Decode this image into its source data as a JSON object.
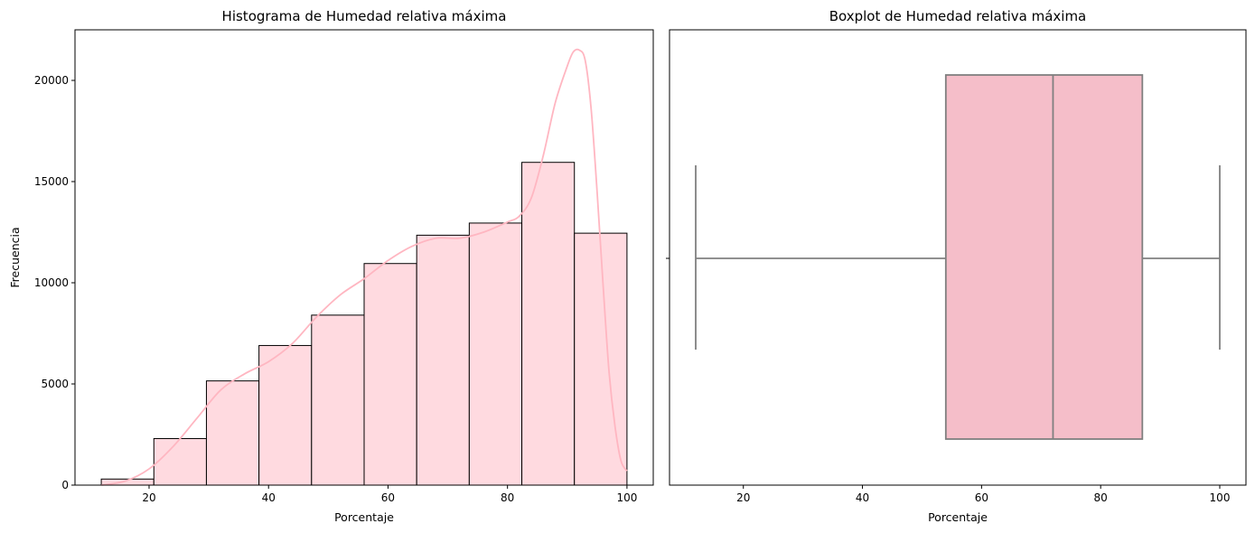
{
  "colors": {
    "bar_fill": "#ffdae0",
    "bar_edge": "#000000",
    "kde_line": "#ffb6c1",
    "box_fill": "#f5bec9",
    "box_edge": "#808080"
  },
  "chart_data": [
    {
      "type": "bar",
      "title": "Histograma de Humedad relativa máxima",
      "xlabel": "Porcentaje",
      "ylabel": "Frecuencia",
      "xlim": [
        7.6,
        104.4
      ],
      "ylim": [
        0,
        22500
      ],
      "xticks": [
        20,
        40,
        60,
        80,
        100
      ],
      "yticks": [
        0,
        5000,
        10000,
        15000,
        20000
      ],
      "bin_edges": [
        12,
        20.8,
        29.6,
        38.4,
        47.2,
        56,
        64.8,
        73.6,
        82.4,
        91.2,
        100
      ],
      "values": [
        300,
        2300,
        5150,
        6900,
        8400,
        10950,
        12350,
        12950,
        15950,
        12450
      ],
      "kde": {
        "x": [
          12,
          16,
          20,
          24,
          28,
          32,
          36,
          40,
          44,
          48,
          52,
          56,
          60,
          64,
          68,
          72,
          76,
          80,
          82,
          84,
          86,
          88,
          90,
          91,
          92,
          93,
          94,
          95,
          96,
          97,
          98,
          99,
          100
        ],
        "y": [
          0,
          200,
          800,
          1900,
          3300,
          4700,
          5500,
          6100,
          7000,
          8300,
          9400,
          10200,
          11100,
          11800,
          12200,
          12200,
          12500,
          13000,
          13300,
          14200,
          16300,
          18900,
          20700,
          21400,
          21500,
          21000,
          18600,
          14500,
          9900,
          5600,
          2900,
          1200,
          700
        ]
      },
      "grid": false,
      "legend": "none"
    },
    {
      "type": "box",
      "title": "Boxplot de Humedad relativa máxima",
      "xlabel": "Porcentaje",
      "xlim": [
        7.6,
        104.4
      ],
      "xticks": [
        20,
        40,
        60,
        80,
        100
      ],
      "whisker_low": 12,
      "q1": 54,
      "median": 72,
      "q3": 87,
      "whisker_high": 100,
      "grid": false,
      "legend": "none"
    }
  ]
}
